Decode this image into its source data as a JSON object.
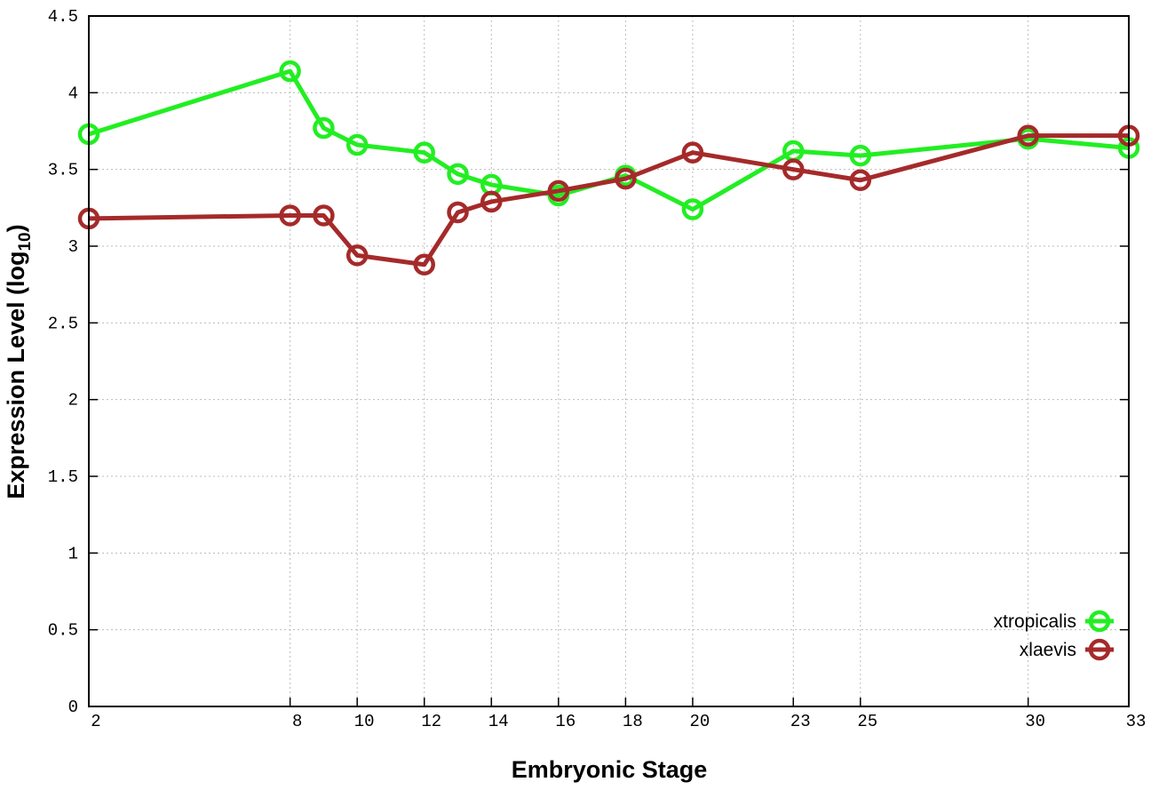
{
  "chart_data": {
    "type": "line",
    "title": "",
    "xlabel": "Embryonic Stage",
    "ylabel": "Expression Level (log10)",
    "ylabel_main": "Expression Level (log",
    "ylabel_sub": "10",
    "ylabel_close": ")",
    "xlim": [
      2,
      33
    ],
    "ylim": [
      0,
      4.5
    ],
    "x_ticks": [
      2,
      8,
      10,
      12,
      14,
      16,
      18,
      20,
      23,
      25,
      30,
      33
    ],
    "y_ticks": [
      0,
      0.5,
      1,
      1.5,
      2,
      2.5,
      3,
      3.5,
      4,
      4.5
    ],
    "y_tick_labels": [
      "0",
      "0.5",
      "1",
      "1.5",
      "2",
      "2.5",
      "3",
      "3.5",
      "4",
      "4.5"
    ],
    "grid": true,
    "legend_position": "bottom-right",
    "x": [
      2,
      8,
      9,
      10,
      12,
      13,
      14,
      16,
      18,
      20,
      23,
      25,
      30,
      33
    ],
    "series": [
      {
        "name": "xtropicalis",
        "color": "#22ee22",
        "values": [
          3.73,
          4.14,
          3.77,
          3.66,
          3.61,
          3.47,
          3.4,
          3.33,
          3.46,
          3.24,
          3.62,
          3.59,
          3.7,
          3.64
        ]
      },
      {
        "name": "xlaevis",
        "color": "#a52a2a",
        "values": [
          3.18,
          3.2,
          3.2,
          2.94,
          2.88,
          3.22,
          3.29,
          3.36,
          3.44,
          3.61,
          3.5,
          3.43,
          3.72,
          3.72
        ]
      }
    ]
  }
}
